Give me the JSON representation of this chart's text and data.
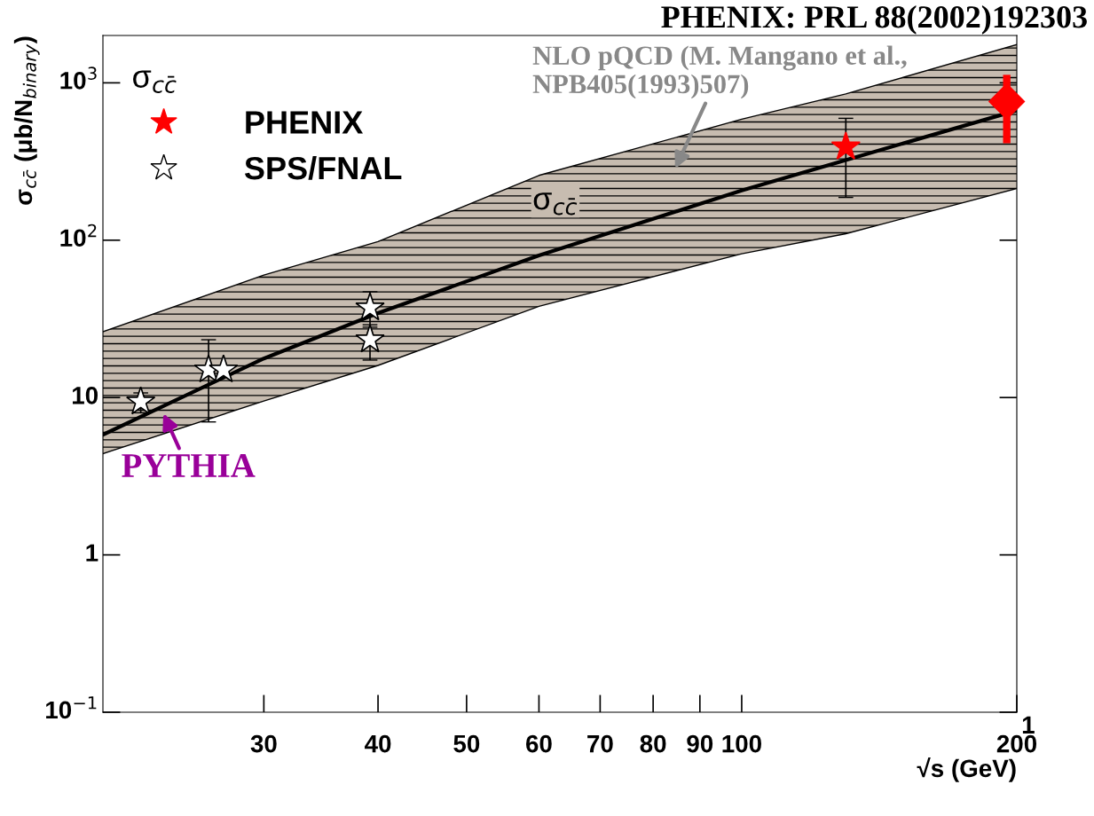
{
  "chart_data": {
    "type": "scatter",
    "title": "PHENIX: PRL 88(2002)192303",
    "xlabel": "√s (GeV)",
    "ylabel": "σ$_{cc̄}$ (μb/N$_{binary}$)",
    "legend_title": "σ$_{cc̄}$",
    "series": [
      {
        "type": "line",
        "color": "#000000",
        "x": [
          20,
          30,
          40,
          60,
          100,
          130,
          200
        ],
        "values": [
          5.8,
          17.7,
          34.4,
          80,
          207,
          323,
          668
        ],
        "lower": [
          4.4,
          9.5,
          16,
          38,
          82,
          110,
          213
        ],
        "upper": [
          26.2,
          60,
          98,
          258,
          587,
          850,
          1750
        ]
      },
      {
        "name": "SPS/FNAL",
        "color": "#ffffff",
        "marker": "star",
        "x": [
          22.0,
          26.1,
          27.1,
          39.2,
          39.2
        ],
        "values": [
          9.4,
          15,
          15,
          37.2,
          23.3
        ],
        "errors": [
          [
            8.0,
            10.7
          ],
          [
            7.0,
            23.3
          ],
          null,
          [
            29,
            47
          ],
          [
            17.3,
            28
          ]
        ]
      },
      {
        "name": "PHENIX",
        "color": "#ff0000",
        "marker": "star",
        "x": [
          130
        ],
        "values": [
          392
        ],
        "errors": [
          [
            187,
            595
          ]
        ]
      },
      {
        "color": "#ff0000",
        "marker": "diamond",
        "x": [
          195
        ],
        "values": [
          761
        ],
        "errors": [
          [
            413,
            1125
          ]
        ]
      }
    ],
    "annotations": [
      "NLO pQCD (M. Mangano et al.,\nNPB405(1993)507)",
      "σ$_{cc̄}$",
      "PYTHIA",
      "1"
    ],
    "log": "xy",
    "xlim": [
      20,
      200
    ],
    "ylim": [
      0.1,
      2000
    ],
    "xticks": [
      30,
      40,
      50,
      60,
      70,
      80,
      90,
      100,
      200
    ],
    "yticks": [
      {
        "value": 0.1,
        "label": "10$^{−1}$"
      },
      1,
      10,
      {
        "value": 100,
        "label": "10$^{2}$"
      },
      {
        "value": 1000,
        "label": "10$^{3}$"
      }
    ],
    "grid": false,
    "legend": "top left"
  }
}
